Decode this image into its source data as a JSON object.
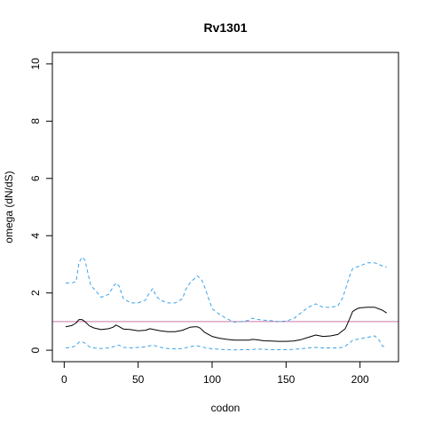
{
  "chart_data": {
    "type": "line",
    "title": "Rv1301",
    "xlabel": "codon",
    "ylabel": "omega (dN/dS)",
    "xlim": [
      -8,
      226
    ],
    "ylim": [
      -0.4,
      10.4
    ],
    "xticks": [
      0,
      50,
      100,
      150,
      200
    ],
    "yticks": [
      0,
      2,
      4,
      6,
      8,
      10
    ],
    "grid": false,
    "reference_line": {
      "y": 1,
      "color": "#cc79a7"
    },
    "series": [
      {
        "style": "solid",
        "color": "#000000",
        "x": [
          1,
          5,
          8,
          10,
          12,
          14,
          17,
          20,
          25,
          30,
          33,
          35,
          37,
          40,
          45,
          50,
          55,
          58,
          60,
          65,
          70,
          75,
          80,
          85,
          88,
          90,
          92,
          95,
          100,
          105,
          110,
          115,
          120,
          125,
          127,
          130,
          135,
          140,
          145,
          150,
          155,
          160,
          165,
          170,
          175,
          180,
          185,
          190,
          193,
          195,
          198,
          200,
          205,
          210,
          215,
          218
        ],
        "y": [
          0.82,
          0.86,
          0.95,
          1.07,
          1.07,
          1.0,
          0.85,
          0.78,
          0.72,
          0.75,
          0.8,
          0.88,
          0.83,
          0.74,
          0.72,
          0.68,
          0.7,
          0.75,
          0.73,
          0.68,
          0.65,
          0.65,
          0.7,
          0.8,
          0.82,
          0.82,
          0.77,
          0.62,
          0.48,
          0.42,
          0.38,
          0.35,
          0.35,
          0.35,
          0.38,
          0.37,
          0.33,
          0.32,
          0.31,
          0.31,
          0.32,
          0.37,
          0.45,
          0.53,
          0.48,
          0.5,
          0.55,
          0.75,
          1.1,
          1.35,
          1.45,
          1.48,
          1.5,
          1.5,
          1.4,
          1.3
        ]
      },
      {
        "style": "dashed",
        "color": "#3ba3e8",
        "x": [
          1,
          5,
          8,
          10,
          12,
          14,
          16,
          18,
          20,
          25,
          30,
          33,
          35,
          37,
          40,
          45,
          50,
          55,
          57,
          59,
          60,
          62,
          65,
          70,
          75,
          80,
          82,
          85,
          88,
          90,
          93,
          95,
          98,
          100,
          105,
          110,
          115,
          120,
          125,
          127,
          130,
          135,
          140,
          145,
          150,
          155,
          160,
          165,
          170,
          175,
          180,
          185,
          188,
          190,
          193,
          195,
          200,
          205,
          210,
          215,
          218
        ],
        "y": [
          2.35,
          2.35,
          2.4,
          3.05,
          3.25,
          3.15,
          2.7,
          2.25,
          2.15,
          1.85,
          1.95,
          2.2,
          2.35,
          2.25,
          1.8,
          1.65,
          1.65,
          1.75,
          1.95,
          2.1,
          2.15,
          1.9,
          1.75,
          1.65,
          1.65,
          1.8,
          2.1,
          2.35,
          2.5,
          2.6,
          2.45,
          2.2,
          1.75,
          1.45,
          1.25,
          1.1,
          0.98,
          1.0,
          1.05,
          1.12,
          1.08,
          1.05,
          1.03,
          1.0,
          1.02,
          1.1,
          1.3,
          1.5,
          1.62,
          1.5,
          1.5,
          1.55,
          1.8,
          2.1,
          2.6,
          2.85,
          2.95,
          3.05,
          3.05,
          2.95,
          2.9
        ]
      },
      {
        "style": "dashed",
        "color": "#3ba3e8",
        "x": [
          1,
          5,
          8,
          10,
          12,
          14,
          17,
          20,
          25,
          30,
          35,
          37,
          40,
          45,
          50,
          55,
          60,
          65,
          70,
          75,
          80,
          85,
          88,
          90,
          93,
          95,
          100,
          105,
          110,
          115,
          120,
          125,
          130,
          135,
          140,
          145,
          150,
          155,
          160,
          165,
          170,
          175,
          180,
          185,
          188,
          190,
          193,
          195,
          200,
          205,
          210,
          213,
          215,
          218
        ],
        "y": [
          0.08,
          0.1,
          0.17,
          0.28,
          0.3,
          0.25,
          0.12,
          0.08,
          0.06,
          0.08,
          0.15,
          0.18,
          0.1,
          0.08,
          0.1,
          0.12,
          0.18,
          0.1,
          0.06,
          0.05,
          0.06,
          0.12,
          0.15,
          0.15,
          0.12,
          0.09,
          0.05,
          0.03,
          0.02,
          0.01,
          0.02,
          0.02,
          0.04,
          0.03,
          0.02,
          0.02,
          0.02,
          0.03,
          0.05,
          0.08,
          0.1,
          0.08,
          0.08,
          0.08,
          0.1,
          0.15,
          0.25,
          0.35,
          0.4,
          0.45,
          0.5,
          0.35,
          0.15,
          0.1
        ]
      }
    ]
  }
}
